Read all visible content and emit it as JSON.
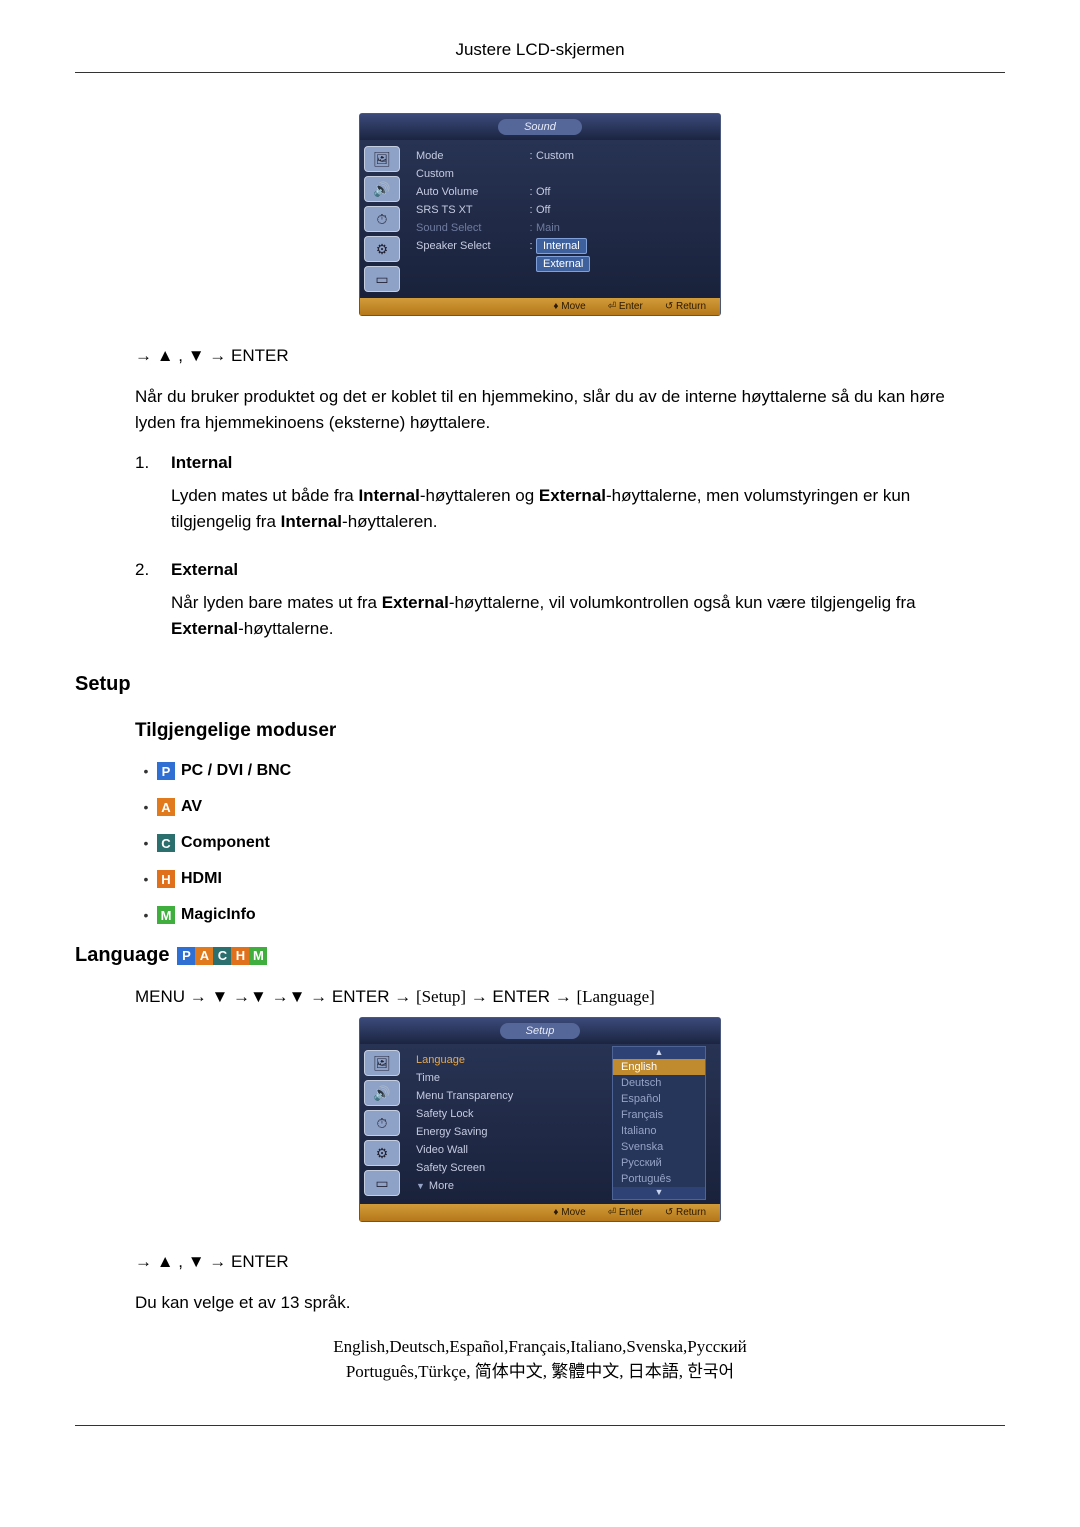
{
  "page": {
    "header": "Justere LCD-skjermen"
  },
  "osd_sound": {
    "title": "Sound",
    "footer_move": "Move",
    "footer_enter": "Enter",
    "footer_return": "Return",
    "rows": {
      "mode_label": "Mode",
      "mode_val": "Custom",
      "custom_label": "Custom",
      "auto_label": "Auto Volume",
      "auto_val": "Off",
      "srs_label": "SRS TS XT",
      "srs_val": "Off",
      "ssel_label": "Sound Select",
      "ssel_val": "Main",
      "spk_label": "Speaker Select",
      "spk_internal": "Internal",
      "spk_external": "External"
    }
  },
  "section1": {
    "nav_seq": "→ ▲ , ▼ → ENTER",
    "intro": "Når du bruker produktet og det er koblet til en hjemmekino, slår du av de interne høyttalerne så du kan høre lyden fra hjemmekinoens (eksterne) høyttalere.",
    "item1_num": "1.",
    "item1_title": "Internal",
    "item1_p1": "Lyden mates ut både fra ",
    "item1_b1": "Internal",
    "item1_p2": "-høyttaleren og ",
    "item1_b2": "External",
    "item1_p3": "-høyttalerne, men volumstyringen er kun tilgjengelig fra ",
    "item1_b3": "Internal",
    "item1_p4": "-høyttaleren.",
    "item2_num": "2.",
    "item2_title": "External",
    "item2_p1": "Når lyden bare mates ut fra ",
    "item2_b1": "External",
    "item2_p2": "-høyttalerne, vil volumkontrollen også kun være tilgjengelig fra ",
    "item2_b2": "External",
    "item2_p3": "-høyttalerne."
  },
  "setup": {
    "heading": "Setup",
    "sub": "Tilgjengelige moduser",
    "modes": {
      "p": {
        "letter": "P",
        "label": "PC / DVI / BNC",
        "color": "#2f6fd4"
      },
      "a": {
        "letter": "A",
        "label": "AV",
        "color": "#e07a1c"
      },
      "c": {
        "letter": "C",
        "label": "Component",
        "color": "#2c6f6f"
      },
      "h": {
        "letter": "H",
        "label": "HDMI",
        "color": "#e0701c"
      },
      "m": {
        "letter": "M",
        "label": "MagicInfo",
        "color": "#3fae3f"
      }
    }
  },
  "language": {
    "heading": "Language",
    "menu_path_pre": "MENU → ▼ →▼ →▼ → ENTER → ",
    "menu_path_setup": "[Setup]",
    "menu_path_mid": " → ENTER → ",
    "menu_path_lang": "[Language]",
    "nav_seq": "→ ▲ , ▼ → ENTER",
    "para": "Du kan velge et av 13 språk.",
    "langs_line1": "English,Deutsch,Español,Français,Italiano,Svenska,Русский",
    "langs_line2": "Português,Türkçe, 简体中文,  繁體中文, 日本語, 한국어"
  },
  "osd_setup": {
    "title": "Setup",
    "footer_move": "Move",
    "footer_enter": "Enter",
    "footer_return": "Return",
    "labels": {
      "language": "Language",
      "time": "Time",
      "menu_trans": "Menu Transparency",
      "safety_lock": "Safety Lock",
      "energy": "Energy Saving",
      "video_wall": "Video Wall",
      "safety_screen": "Safety Screen",
      "more": "More"
    },
    "dropdown": {
      "english": "English",
      "deutsch": "Deutsch",
      "espanol": "Español",
      "francais": "Français",
      "italiano": "Italiano",
      "svenska": "Svenska",
      "russian": "Русский",
      "portugues": "Português"
    }
  }
}
